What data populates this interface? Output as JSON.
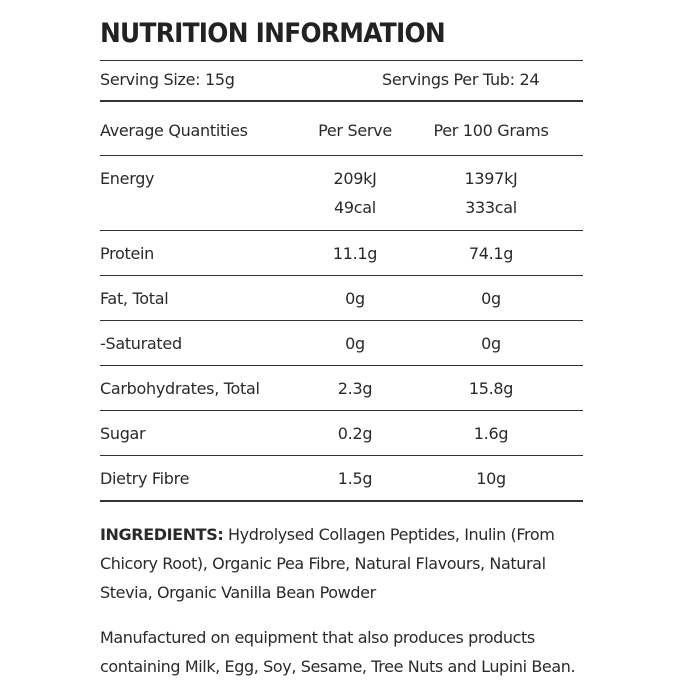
{
  "header": {
    "title": "NUTRITION INFORMATION",
    "serving_size": "Serving Size: 15g",
    "servings_per_tub": "Servings Per Tub: 24"
  },
  "table": {
    "columns": [
      "Average Quantities",
      "Per Serve",
      "Per 100 Grams"
    ],
    "rows": [
      [
        "Energy",
        [
          "209kJ",
          "49cal"
        ],
        [
          "1397kJ",
          "333cal"
        ]
      ],
      [
        "Protein",
        "11.1g",
        "74.1g"
      ],
      [
        "Fat, Total",
        "0g",
        "0g"
      ],
      [
        "-Saturated",
        "0g",
        "0g"
      ],
      [
        "Carbohydrates, Total",
        "2.3g",
        "15.8g"
      ],
      [
        "Sugar",
        "0.2g",
        "1.6g"
      ],
      [
        "Dietry Fibre",
        "1.5g",
        "10g"
      ]
    ]
  },
  "ingredients": {
    "label": "INGREDIENTS:",
    "text": "Hydrolysed Collagen Peptides, Inulin (From Chicory Root), Organic Pea Fibre, Natural Flavours, Natural Stevia, Organic Vanilla Bean Powder"
  },
  "note": "Manufactured on equipment that also produces products containing Milk, Egg, Soy, Sesame, Tree Nuts and Lupini Bean."
}
